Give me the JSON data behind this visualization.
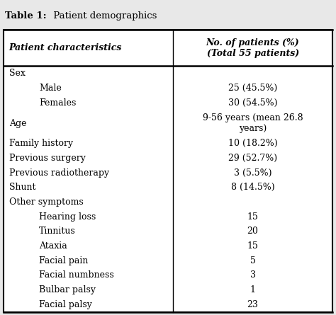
{
  "title": "Table 1: Patient demographics",
  "col1_header": "Patient characteristics",
  "col2_header": "No. of patients (%)\n(Total 55 patients)",
  "rows": [
    {
      "left": "Sex",
      "right": "",
      "indent_left": false
    },
    {
      "left": "Male",
      "right": "25 (45.5%)",
      "indent_left": true
    },
    {
      "left": "Females",
      "right": "30 (54.5%)",
      "indent_left": true
    },
    {
      "left": "Age",
      "right": "9-56 years (mean 26.8\nyears)",
      "indent_left": false
    },
    {
      "left": "Family history",
      "right": "10 (18.2%)",
      "indent_left": false
    },
    {
      "left": "Previous surgery",
      "right": "29 (52.7%)",
      "indent_left": false
    },
    {
      "left": "Previous radiotherapy",
      "right": "3 (5.5%)",
      "indent_left": false
    },
    {
      "left": "Shunt",
      "right": "8 (14.5%)",
      "indent_left": false
    },
    {
      "left": "Other symptoms",
      "right": "",
      "indent_left": false
    },
    {
      "left": "Hearing loss",
      "right": "15",
      "indent_left": true
    },
    {
      "left": "Tinnitus",
      "right": "20",
      "indent_left": true
    },
    {
      "left": "Ataxia",
      "right": "15",
      "indent_left": true
    },
    {
      "left": "Facial pain",
      "right": "5",
      "indent_left": true
    },
    {
      "left": "Facial numbness",
      "right": "3",
      "indent_left": true
    },
    {
      "left": "Bulbar palsy",
      "right": "1",
      "indent_left": true
    },
    {
      "left": "Facial palsy",
      "right": "23",
      "indent_left": true
    }
  ],
  "bg_color": "#e8e8e8",
  "table_bg": "#ffffff",
  "font_size": 9.0,
  "header_font_size": 9.0,
  "title_font_size": 9.5,
  "col_split": 0.515,
  "indent_amount": 0.09,
  "title_bold_prefix": "Table 1:",
  "title_normal_suffix": " Patient demographics"
}
